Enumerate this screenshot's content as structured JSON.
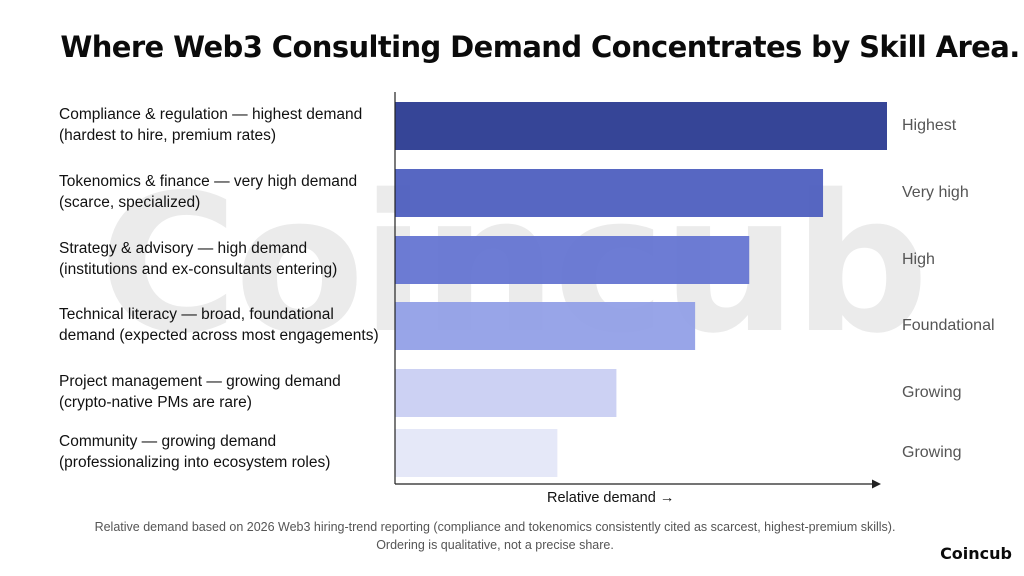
{
  "title": "Where Web3 Consulting Demand Concentrates by Skill Area.",
  "watermark": "Coincub",
  "brand": "Coincub",
  "footnote": {
    "line1": "Relative demand based on 2026 Web3 hiring-trend reporting (compliance and tokenomics consistently cited as scarcest, highest-premium skills).",
    "line2": "Ordering is qualitative, not a precise share."
  },
  "chart_data": {
    "type": "bar",
    "orientation": "horizontal",
    "xlabel": "Relative demand →",
    "xlim": [
      0,
      100
    ],
    "categories": [
      {
        "line1": "Compliance & regulation — highest demand",
        "line2": "(hardest to hire, premium rates)"
      },
      {
        "line1": "Tokenomics & finance — very high demand",
        "line2": "(scarce, specialized)"
      },
      {
        "line1": "Strategy & advisory — high demand",
        "line2": "(institutions and ex-consultants entering)"
      },
      {
        "line1": "Technical literacy — broad, foundational",
        "line2": "demand (expected across most engagements)"
      },
      {
        "line1": "Project management — growing demand",
        "line2": "(crypto-native PMs are rare)"
      },
      {
        "line1": "Community — growing demand",
        "line2": "(professionalizing into ecosystem roles)"
      }
    ],
    "values": [
      100,
      87,
      72,
      61,
      45,
      33
    ],
    "level_labels": [
      "Highest",
      "Very high",
      "High",
      "Foundational",
      "Growing",
      "Growing"
    ],
    "colors": [
      "#27378f",
      "#4a5bbd",
      "#6272d1",
      "#909ee6",
      "#c8cdf2",
      "#e3e6f8"
    ]
  }
}
